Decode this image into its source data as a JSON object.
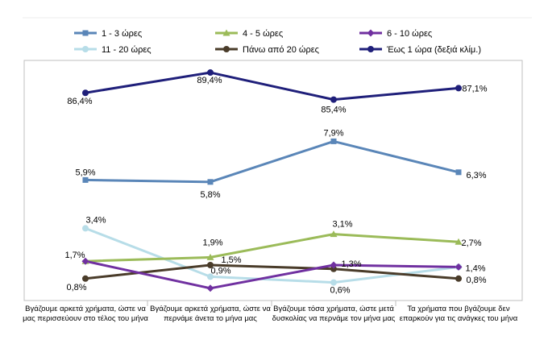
{
  "chart_data": {
    "type": "line",
    "categories": [
      [
        "Βγάζουμε αρκετά χρήματα, ώστε να",
        "μας περισσεύουν στο τέλος του μήνα"
      ],
      [
        "Βγάζουμε αρκετά χρήματα, ώστε να",
        "περνάμε άνετα το μήνα μας"
      ],
      [
        "Βγάζουμε τόσα χρήματα, ώστε μετά",
        "δυσκολίας να περνάμε τον μήνα μας"
      ],
      [
        "Τα χρήματα που βγάζουμε δεν",
        "επαρκούν για τις ανάγκες του μήνα"
      ]
    ],
    "series": [
      {
        "name": "1 - 3 ώρες",
        "values": [
          5.9,
          5.8,
          7.9,
          6.3
        ],
        "labels": [
          "5,9%",
          "5,8%",
          "7,9%",
          "6,3%"
        ],
        "color": "#5a86b8",
        "marker": "square",
        "axis": "left"
      },
      {
        "name": "4 - 5 ώρες",
        "values": [
          1.7,
          1.9,
          3.1,
          2.7
        ],
        "labels": [
          "1,7%",
          "1,9%",
          "3,1%",
          "2,7%"
        ],
        "color": "#9bbb59",
        "marker": "triangle",
        "axis": "left"
      },
      {
        "name": "6 - 10 ώρες",
        "values": [
          1.7,
          0.3,
          1.5,
          1.4
        ],
        "labels": [
          "",
          "",
          "",
          ""
        ],
        "color": "#7030a0",
        "marker": "diamond",
        "axis": "left"
      },
      {
        "name": "11 - 20 ώρες",
        "values": [
          3.4,
          0.9,
          0.6,
          1.4
        ],
        "labels": [
          "3,4%",
          "0,9%",
          "0,6%",
          "1,4%"
        ],
        "color": "#b7dde8",
        "marker": "circle",
        "axis": "left"
      },
      {
        "name": "Πάνω από 20 ώρες",
        "values": [
          0.8,
          1.5,
          1.3,
          0.8
        ],
        "labels": [
          "0,8%",
          "1,5%",
          "1,3%",
          "0,8%"
        ],
        "color": "#4a3c2a",
        "marker": "circle",
        "axis": "left"
      },
      {
        "name": "Έως 1 ώρα (δεξιά κλίμ.)",
        "values": [
          86.4,
          89.4,
          85.4,
          87.1
        ],
        "labels": [
          "86,4%",
          "89,4%",
          "85,4%",
          "87,1%"
        ],
        "color": "#1f1f7a",
        "marker": "circle",
        "axis": "right"
      }
    ],
    "legend_position": "top",
    "grid": false
  }
}
